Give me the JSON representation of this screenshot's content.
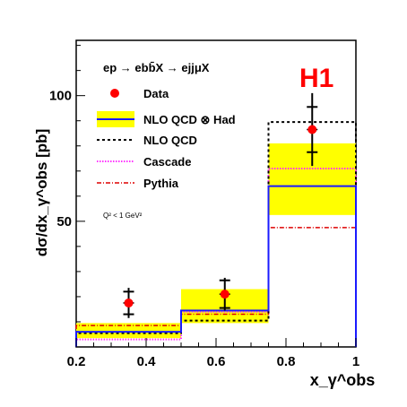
{
  "chart_data": {
    "type": "histogram",
    "process": "ep → ebb̄X → ejjμX",
    "experiment": "H1",
    "cut_note": "Q² < 1 GeV²",
    "xlabel": "x_γ^obs",
    "ylabel": "dσ/dx_γ^obs [pb]",
    "xlim": [
      0.2,
      1.0
    ],
    "ylim": [
      0,
      122
    ],
    "x_ticks": [
      "0.2",
      "0.4",
      "0.6",
      "0.8",
      "1"
    ],
    "y_ticks": [
      "50",
      "100"
    ],
    "bins": [
      [
        0.2,
        0.5
      ],
      [
        0.5,
        0.75
      ],
      [
        0.75,
        1.0
      ]
    ],
    "data": {
      "name": "Data",
      "x": [
        0.35,
        0.625,
        0.875
      ],
      "y": [
        17.5,
        21.0,
        86.5
      ],
      "stat_err": [
        4.5,
        5.5,
        9.0
      ],
      "tot_err": [
        6.0,
        6.5,
        14.5
      ]
    },
    "nlo_had": {
      "name": "NLO  QCD ⊗ Had",
      "values": [
        6.0,
        14.5,
        64.0
      ],
      "band_low": [
        3.5,
        9.5,
        52.5
      ],
      "band_high": [
        9.5,
        23.0,
        81.0
      ]
    },
    "nlo": {
      "name": "NLO  QCD",
      "values": [
        5.5,
        10.5,
        89.5
      ]
    },
    "cascade": {
      "name": "Cascade",
      "values": [
        3.0,
        14.0,
        71.0
      ]
    },
    "pythia": {
      "name": "Pythia",
      "values": [
        8.5,
        13.0,
        47.5
      ]
    },
    "colors": {
      "band": "#ffff00",
      "nlo_had": "#1a1aff",
      "nlo": "#000000",
      "cascade": "#ff33ff",
      "pythia": "#dd0000",
      "data": "#ff0000",
      "h1": "#ff0000"
    }
  }
}
